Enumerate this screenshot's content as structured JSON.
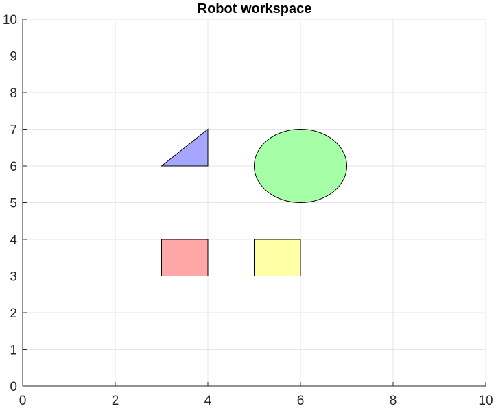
{
  "chart_data": {
    "type": "scatter",
    "title": "Robot workspace",
    "xlabel": "",
    "ylabel": "",
    "xlim": [
      0,
      10
    ],
    "ylim": [
      0,
      10
    ],
    "x_ticks": [
      "0",
      "2",
      "4",
      "6",
      "8",
      "10"
    ],
    "y_ticks": [
      "0",
      "1",
      "2",
      "3",
      "4",
      "5",
      "6",
      "7",
      "8",
      "9",
      "10"
    ],
    "grid": true,
    "shapes": [
      {
        "kind": "triangle",
        "points": [
          [
            3,
            6
          ],
          [
            4,
            6
          ],
          [
            4,
            7
          ]
        ],
        "fill": "#A6A6FF"
      },
      {
        "kind": "ellipse",
        "center": [
          6,
          6
        ],
        "rx": 1,
        "ry": 1,
        "fill": "#A6FFA6"
      },
      {
        "kind": "rectangle",
        "x": 3,
        "y": 3,
        "width": 1,
        "height": 1,
        "fill": "#FFA6A6"
      },
      {
        "kind": "rectangle",
        "x": 5,
        "y": 3,
        "width": 1,
        "height": 1,
        "fill": "#FFFFA6"
      }
    ]
  }
}
